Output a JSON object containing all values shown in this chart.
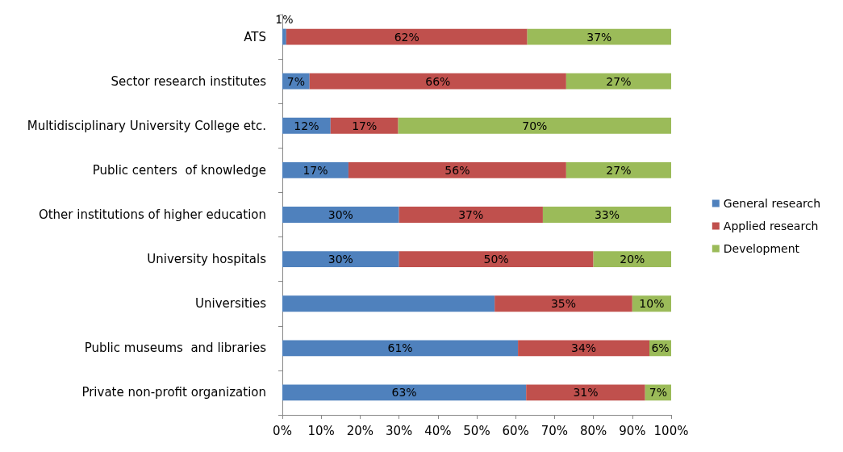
{
  "chart_data": {
    "type": "bar",
    "orientation": "horizontal",
    "stacked": true,
    "categories": [
      "ATS",
      "Sector research institutes",
      "Multidisciplinary University College etc.",
      "Public centers  of knowledge",
      "Other institutions of higher education",
      "University hospitals",
      "Universities",
      "Public museums  and libraries",
      "Private non-profit organization"
    ],
    "series": [
      {
        "name": "General research",
        "color": "#4f81bd",
        "values": [
          1,
          7,
          12.4,
          17,
          30,
          30,
          54.6,
          60.6,
          62.7
        ],
        "value_labels": [
          "1%",
          "7%",
          "12%",
          "17%",
          "30%",
          "30%",
          null,
          "61%",
          "63%"
        ]
      },
      {
        "name": "Applied research",
        "color": "#c0504d",
        "values": [
          62,
          66,
          17.4,
          56,
          37,
          50,
          35.4,
          33.8,
          30.6
        ],
        "value_labels": [
          "62%",
          "66%",
          "17%",
          "56%",
          "37%",
          "50%",
          "35%",
          "34%",
          "31%"
        ]
      },
      {
        "name": "Development",
        "color": "#9bbb59",
        "values": [
          37,
          27,
          70.2,
          27,
          33,
          20,
          10,
          5.6,
          6.7
        ],
        "value_labels": [
          "37%",
          "27%",
          "70%",
          "27%",
          "33%",
          "20%",
          "10%",
          "6%",
          "7%"
        ]
      }
    ],
    "xlim": [
      0,
      100
    ],
    "xticks": [
      {
        "value": 0,
        "label": "0%"
      },
      {
        "value": 10,
        "label": "10%"
      },
      {
        "value": 20,
        "label": "20%"
      },
      {
        "value": 30,
        "label": "30%"
      },
      {
        "value": 40,
        "label": "40%"
      },
      {
        "value": 50,
        "label": "50%"
      },
      {
        "value": 60,
        "label": "60%"
      },
      {
        "value": 70,
        "label": "70%"
      },
      {
        "value": 80,
        "label": "80%"
      },
      {
        "value": 90,
        "label": "90%"
      },
      {
        "value": 100,
        "label": "100%"
      }
    ],
    "grid": false,
    "legend": "right"
  }
}
